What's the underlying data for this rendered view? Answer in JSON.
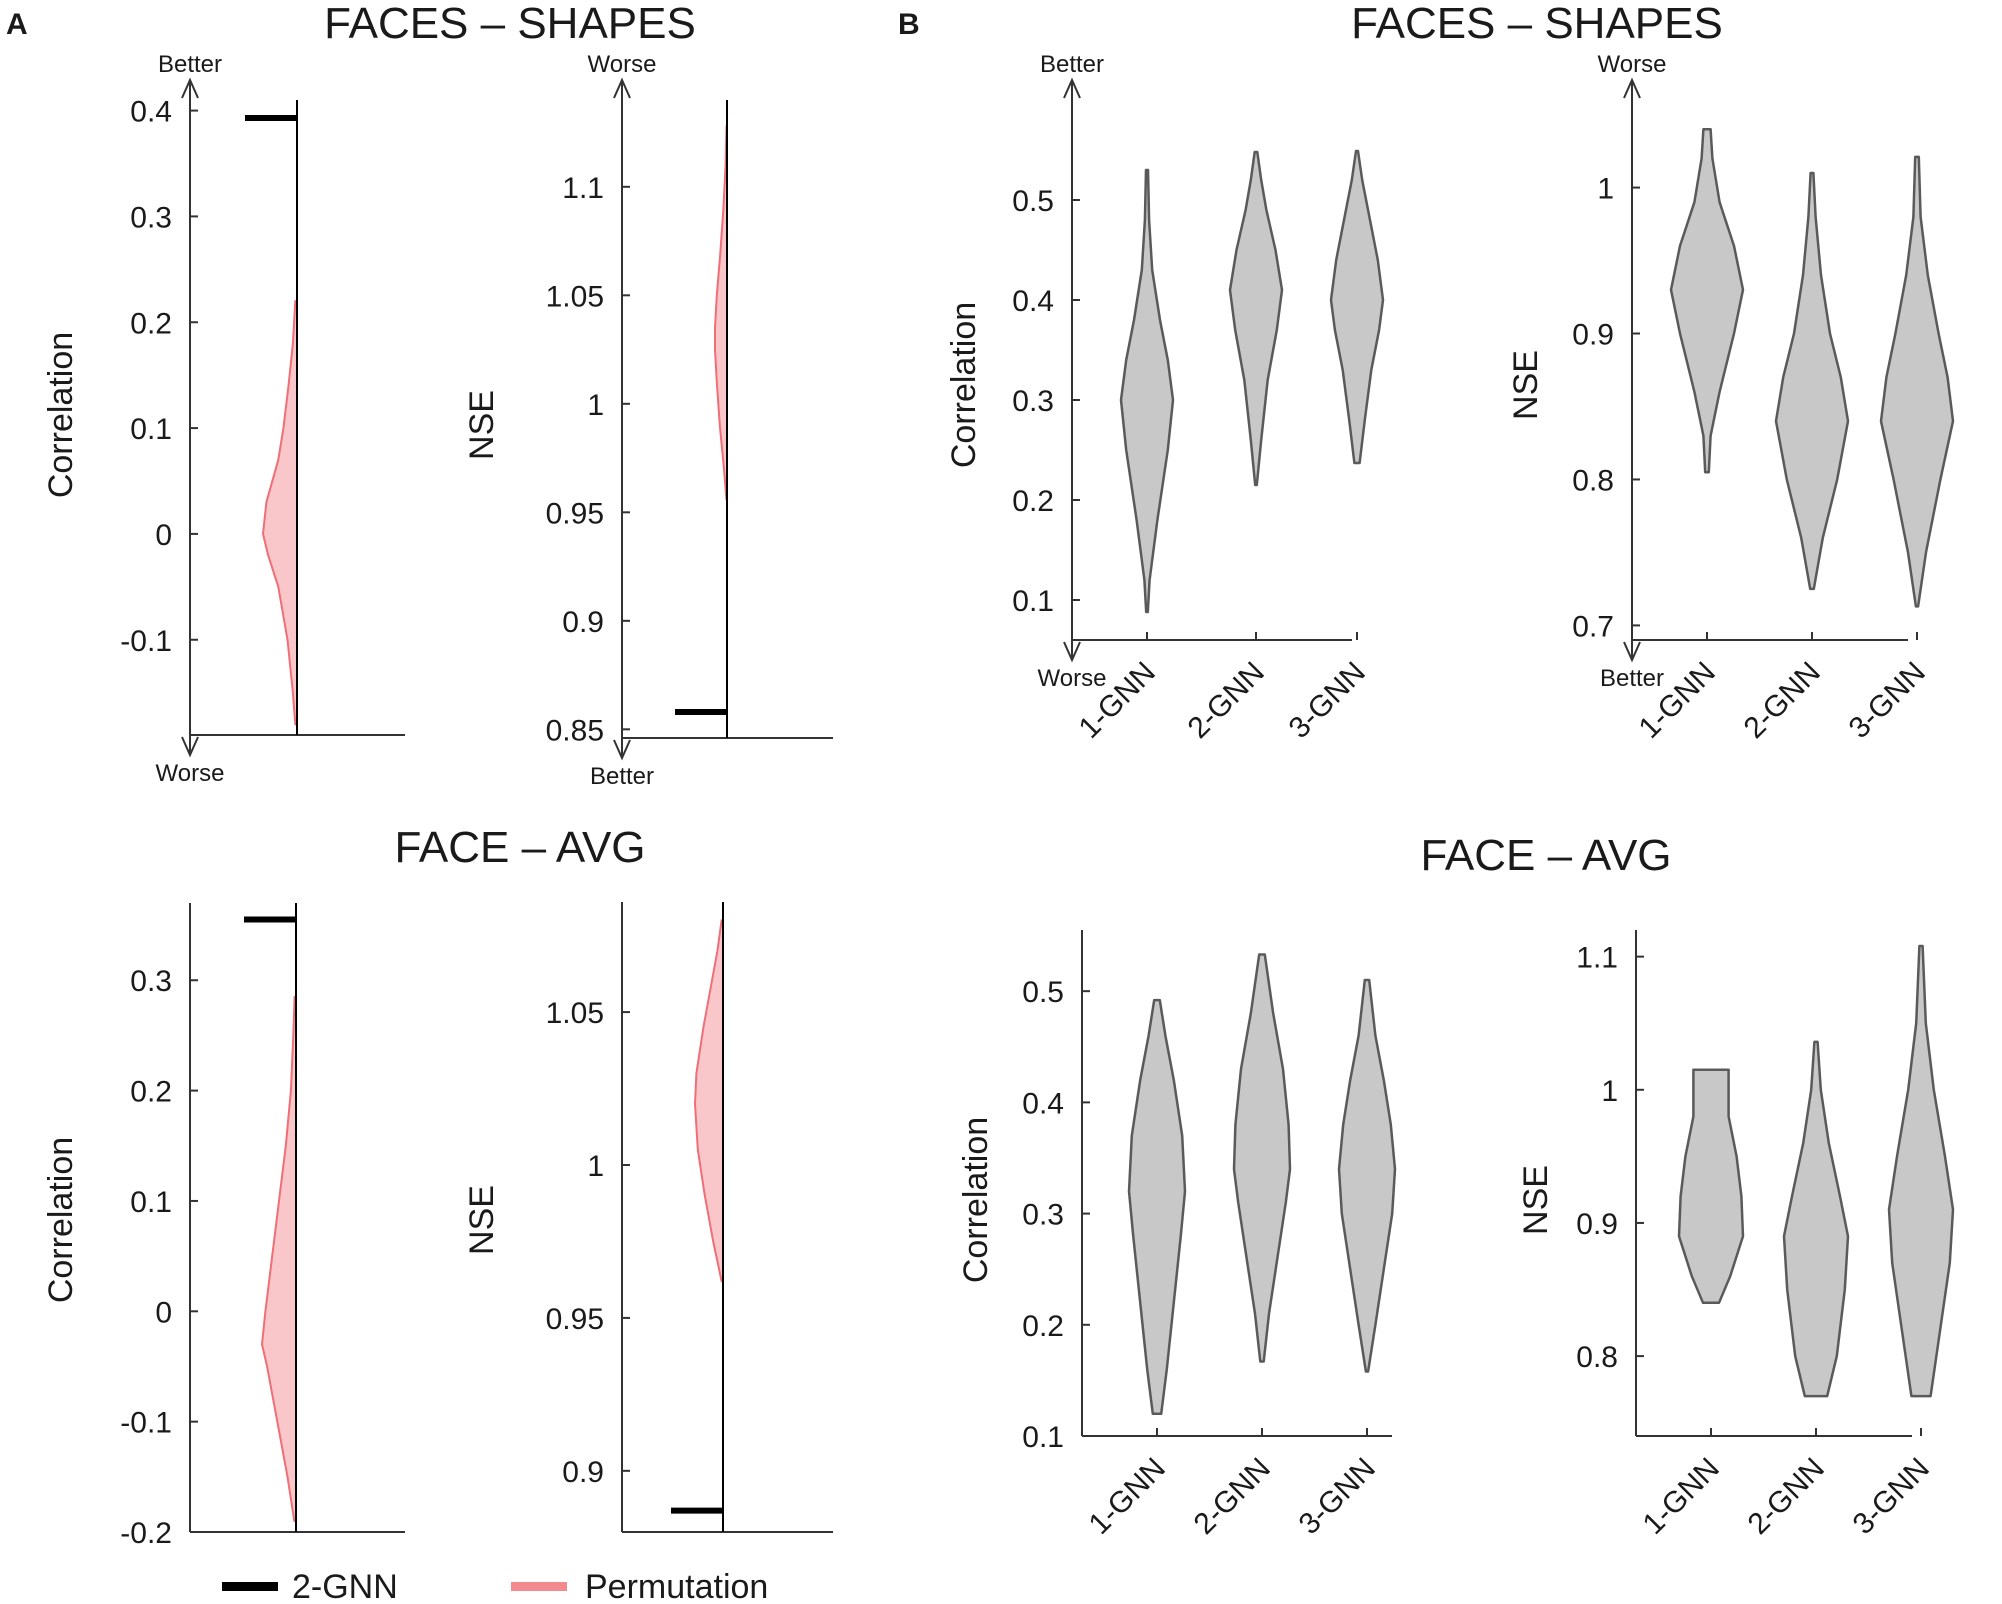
{
  "panel_labels": {
    "a": "A",
    "b": "B"
  },
  "titles": {
    "a_top": "FACES – SHAPES",
    "a_bottom": "FACE – AVG",
    "b_top": "FACES – SHAPES",
    "b_bottom": "FACE – AVG"
  },
  "arrow_labels": {
    "better": "Better",
    "worse": "Worse"
  },
  "legend": {
    "gnn_label": "2-GNN",
    "perm_label": "Permutation",
    "gnn_color": "#000000",
    "perm_color": "#f28a8f"
  },
  "colors": {
    "perm_fill": "#f9c6c9",
    "perm_stroke": "#ee6f78",
    "violin_fill": "#c8c8c8",
    "violin_stroke": "#5a5a5a",
    "axis": "#333333"
  },
  "chart_data": [
    {
      "id": "a1",
      "type": "area",
      "ylabel": "Correlation",
      "ylim": [
        -0.19,
        0.41
      ],
      "yticks": [
        0.4,
        0.3,
        0.2,
        0.1,
        0,
        -0.1
      ],
      "ytick_labels": [
        "0.4",
        "0.3",
        "0.2",
        "0.1",
        "0",
        "-0.1"
      ],
      "top_arrow": "better",
      "bottom_arrow": "worse",
      "gnn_value": 0.393,
      "permutation": {
        "y": [
          -0.18,
          -0.15,
          -0.1,
          -0.05,
          -0.02,
          0.0,
          0.03,
          0.07,
          0.1,
          0.14,
          0.18,
          0.22
        ],
        "density": [
          0.05,
          0.12,
          0.28,
          0.55,
          0.85,
          1.0,
          0.9,
          0.55,
          0.4,
          0.25,
          0.12,
          0.05
        ]
      }
    },
    {
      "id": "a2",
      "type": "area",
      "ylabel": "NSE",
      "ylim": [
        0.846,
        1.14
      ],
      "yticks": [
        1.1,
        1.05,
        1,
        0.95,
        0.9,
        0.85
      ],
      "ytick_labels": [
        "1.1",
        "1.05",
        "1",
        "0.95",
        "0.9",
        "0.85"
      ],
      "top_arrow": "worse",
      "bottom_arrow": "better",
      "gnn_value": 0.858,
      "permutation": {
        "y": [
          0.956,
          0.97,
          0.99,
          1.01,
          1.025,
          1.035,
          1.05,
          1.07,
          1.09,
          1.11,
          1.128
        ],
        "density": [
          0.05,
          0.25,
          0.6,
          0.85,
          1.0,
          1.0,
          0.85,
          0.55,
          0.3,
          0.12,
          0.04
        ]
      }
    },
    {
      "id": "a3",
      "type": "area",
      "ylabel": "Correlation",
      "ylim": [
        -0.2,
        0.37
      ],
      "yticks": [
        0.3,
        0.2,
        0.1,
        0,
        -0.1,
        -0.2
      ],
      "ytick_labels": [
        "0.3",
        "0.2",
        "0.1",
        "0",
        "-0.1",
        "-0.2"
      ],
      "gnn_value": 0.355,
      "permutation": {
        "y": [
          -0.19,
          -0.15,
          -0.1,
          -0.05,
          -0.03,
          0.0,
          0.05,
          0.1,
          0.15,
          0.2,
          0.25,
          0.285
        ],
        "density": [
          0.05,
          0.25,
          0.55,
          0.85,
          1.0,
          0.9,
          0.7,
          0.5,
          0.3,
          0.15,
          0.08,
          0.04
        ]
      }
    },
    {
      "id": "a4",
      "type": "area",
      "ylabel": "NSE",
      "ylim": [
        0.88,
        1.086
      ],
      "yticks": [
        1.05,
        1,
        0.95,
        0.9
      ],
      "ytick_labels": [
        "1.05",
        "1",
        "0.95",
        "0.9"
      ],
      "gnn_value": 0.887,
      "permutation": {
        "y": [
          0.962,
          0.975,
          0.99,
          1.005,
          1.02,
          1.03,
          1.045,
          1.06,
          1.07,
          1.08
        ],
        "density": [
          0.05,
          0.35,
          0.65,
          0.9,
          1.0,
          0.95,
          0.7,
          0.4,
          0.2,
          0.05
        ]
      }
    },
    {
      "id": "b1",
      "type": "violin",
      "ylabel": "Correlation",
      "ylim": [
        0.06,
        0.6
      ],
      "yticks": [
        0.5,
        0.4,
        0.3,
        0.2,
        0.1
      ],
      "ytick_labels": [
        "0.5",
        "0.4",
        "0.3",
        "0.2",
        "0.1"
      ],
      "top_arrow": "better",
      "bottom_arrow": "worse",
      "categories": [
        "1-GNN",
        "2-GNN",
        "3-GNN"
      ],
      "violins": [
        {
          "y": [
            0.088,
            0.12,
            0.18,
            0.25,
            0.3,
            0.34,
            0.38,
            0.43,
            0.48,
            0.53
          ],
          "w": [
            0.03,
            0.1,
            0.4,
            0.8,
            1.0,
            0.8,
            0.5,
            0.2,
            0.08,
            0.04
          ]
        },
        {
          "y": [
            0.215,
            0.26,
            0.32,
            0.37,
            0.41,
            0.45,
            0.49,
            0.52,
            0.548
          ],
          "w": [
            0.03,
            0.2,
            0.45,
            0.8,
            1.0,
            0.75,
            0.4,
            0.2,
            0.05
          ]
        },
        {
          "y": [
            0.237,
            0.28,
            0.33,
            0.37,
            0.4,
            0.44,
            0.48,
            0.52,
            0.549
          ],
          "w": [
            0.1,
            0.3,
            0.55,
            0.85,
            1.0,
            0.8,
            0.5,
            0.2,
            0.04
          ]
        }
      ]
    },
    {
      "id": "b2",
      "type": "violin",
      "ylabel": "NSE",
      "ylim": [
        0.69,
        1.06
      ],
      "yticks": [
        1,
        0.9,
        0.8,
        0.7
      ],
      "ytick_labels": [
        "1",
        "0.9",
        "0.8",
        "0.7"
      ],
      "top_arrow": "worse",
      "bottom_arrow": "better",
      "categories": [
        "1-GNN",
        "2-GNN",
        "3-GNN"
      ],
      "violins": [
        {
          "y": [
            0.805,
            0.83,
            0.86,
            0.9,
            0.93,
            0.96,
            0.99,
            1.02,
            1.04
          ],
          "w": [
            0.05,
            0.1,
            0.35,
            0.75,
            1.0,
            0.75,
            0.35,
            0.15,
            0.1
          ]
        },
        {
          "y": [
            0.725,
            0.76,
            0.8,
            0.84,
            0.87,
            0.9,
            0.94,
            0.98,
            1.01
          ],
          "w": [
            0.05,
            0.3,
            0.7,
            1.0,
            0.8,
            0.5,
            0.25,
            0.1,
            0.04
          ]
        },
        {
          "y": [
            0.713,
            0.75,
            0.8,
            0.84,
            0.87,
            0.9,
            0.94,
            0.98,
            1.021
          ],
          "w": [
            0.03,
            0.25,
            0.65,
            1.0,
            0.85,
            0.6,
            0.3,
            0.1,
            0.05
          ]
        }
      ]
    },
    {
      "id": "b3",
      "type": "violin",
      "ylabel": "Correlation",
      "ylim": [
        0.1,
        0.555
      ],
      "yticks": [
        0.5,
        0.4,
        0.3,
        0.2,
        0.1
      ],
      "ytick_labels": [
        "0.5",
        "0.4",
        "0.3",
        "0.2",
        "0.1"
      ],
      "categories": [
        "1-GNN",
        "2-GNN",
        "3-GNN"
      ],
      "violins": [
        {
          "y": [
            0.12,
            0.16,
            0.22,
            0.28,
            0.32,
            0.37,
            0.42,
            0.46,
            0.492
          ],
          "w": [
            0.15,
            0.35,
            0.6,
            0.85,
            1.0,
            0.9,
            0.6,
            0.3,
            0.1
          ]
        },
        {
          "y": [
            0.167,
            0.21,
            0.26,
            0.31,
            0.34,
            0.38,
            0.43,
            0.48,
            0.533
          ],
          "w": [
            0.06,
            0.25,
            0.55,
            0.85,
            1.0,
            0.95,
            0.75,
            0.4,
            0.1
          ]
        },
        {
          "y": [
            0.158,
            0.2,
            0.25,
            0.3,
            0.34,
            0.38,
            0.42,
            0.46,
            0.51
          ],
          "w": [
            0.04,
            0.3,
            0.6,
            0.9,
            1.0,
            0.85,
            0.6,
            0.3,
            0.08
          ]
        }
      ]
    },
    {
      "id": "b4",
      "type": "violin",
      "ylabel": "NSE",
      "ylim": [
        0.74,
        1.12
      ],
      "yticks": [
        1.1,
        1,
        0.9,
        0.8
      ],
      "ytick_labels": [
        "1.1",
        "1",
        "0.9",
        "0.8"
      ],
      "categories": [
        "1-GNN",
        "2-GNN",
        "3-GNN"
      ],
      "violins": [
        {
          "y": [
            0.84,
            0.86,
            0.89,
            0.92,
            0.95,
            0.98,
            1.015
          ],
          "w": [
            0.25,
            0.6,
            1.0,
            0.95,
            0.8,
            0.55,
            0.55
          ]
        },
        {
          "y": [
            0.77,
            0.8,
            0.85,
            0.89,
            0.92,
            0.96,
            1.0,
            1.036
          ],
          "w": [
            0.35,
            0.65,
            0.9,
            1.0,
            0.75,
            0.4,
            0.15,
            0.05
          ]
        },
        {
          "y": [
            0.77,
            0.82,
            0.87,
            0.91,
            0.95,
            1.0,
            1.05,
            1.108
          ],
          "w": [
            0.3,
            0.6,
            0.9,
            1.0,
            0.75,
            0.4,
            0.15,
            0.05
          ]
        }
      ]
    }
  ]
}
